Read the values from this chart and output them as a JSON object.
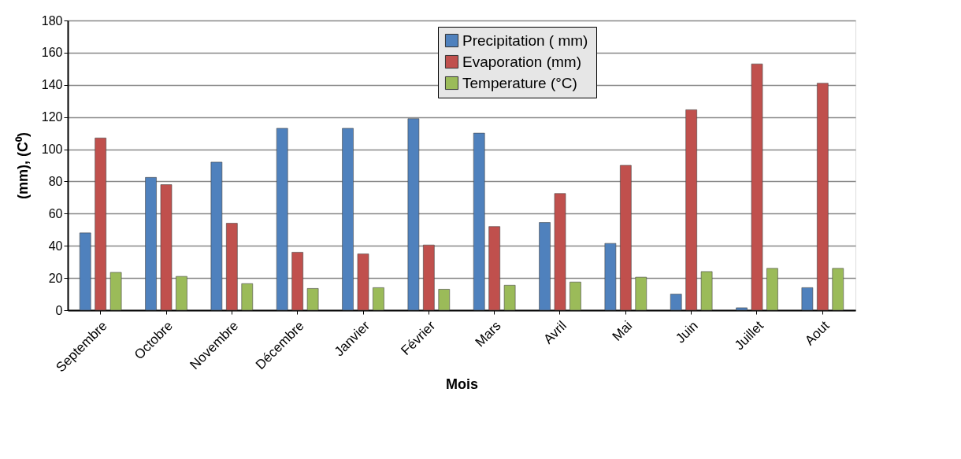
{
  "chart_data": {
    "type": "bar",
    "xlabel": "Mois",
    "ylabel": "(mm), (C⁰)",
    "categories": [
      "Septembre",
      "Octobre",
      "Novembre",
      "Décembre",
      "Janvier",
      "Février",
      "Mars",
      "Avril",
      "Mai",
      "Juin",
      "Juillet",
      "Aout"
    ],
    "series": [
      {
        "name": "Precipitation ( mm)",
        "color": "#4f81bd",
        "values": [
          48,
          82.5,
          92,
          113,
          113,
          119,
          110,
          54.5,
          41.5,
          10,
          1.5,
          14
        ]
      },
      {
        "name": "Evaporation   (mm)",
        "color": "#c0504d",
        "values": [
          107,
          78,
          54,
          36,
          35,
          40.5,
          52,
          72.5,
          90,
          124.5,
          153,
          141
        ]
      },
      {
        "name": "Temperature (°C)",
        "color": "#9bbb59",
        "values": [
          23.5,
          21,
          16.5,
          13.5,
          14,
          13,
          15.5,
          17.5,
          20.5,
          24,
          26,
          26
        ]
      }
    ],
    "ylim": [
      0,
      180
    ],
    "yticks": [
      0,
      20,
      40,
      60,
      80,
      100,
      120,
      140,
      160,
      180
    ],
    "grid": "y",
    "legend": "top right"
  }
}
